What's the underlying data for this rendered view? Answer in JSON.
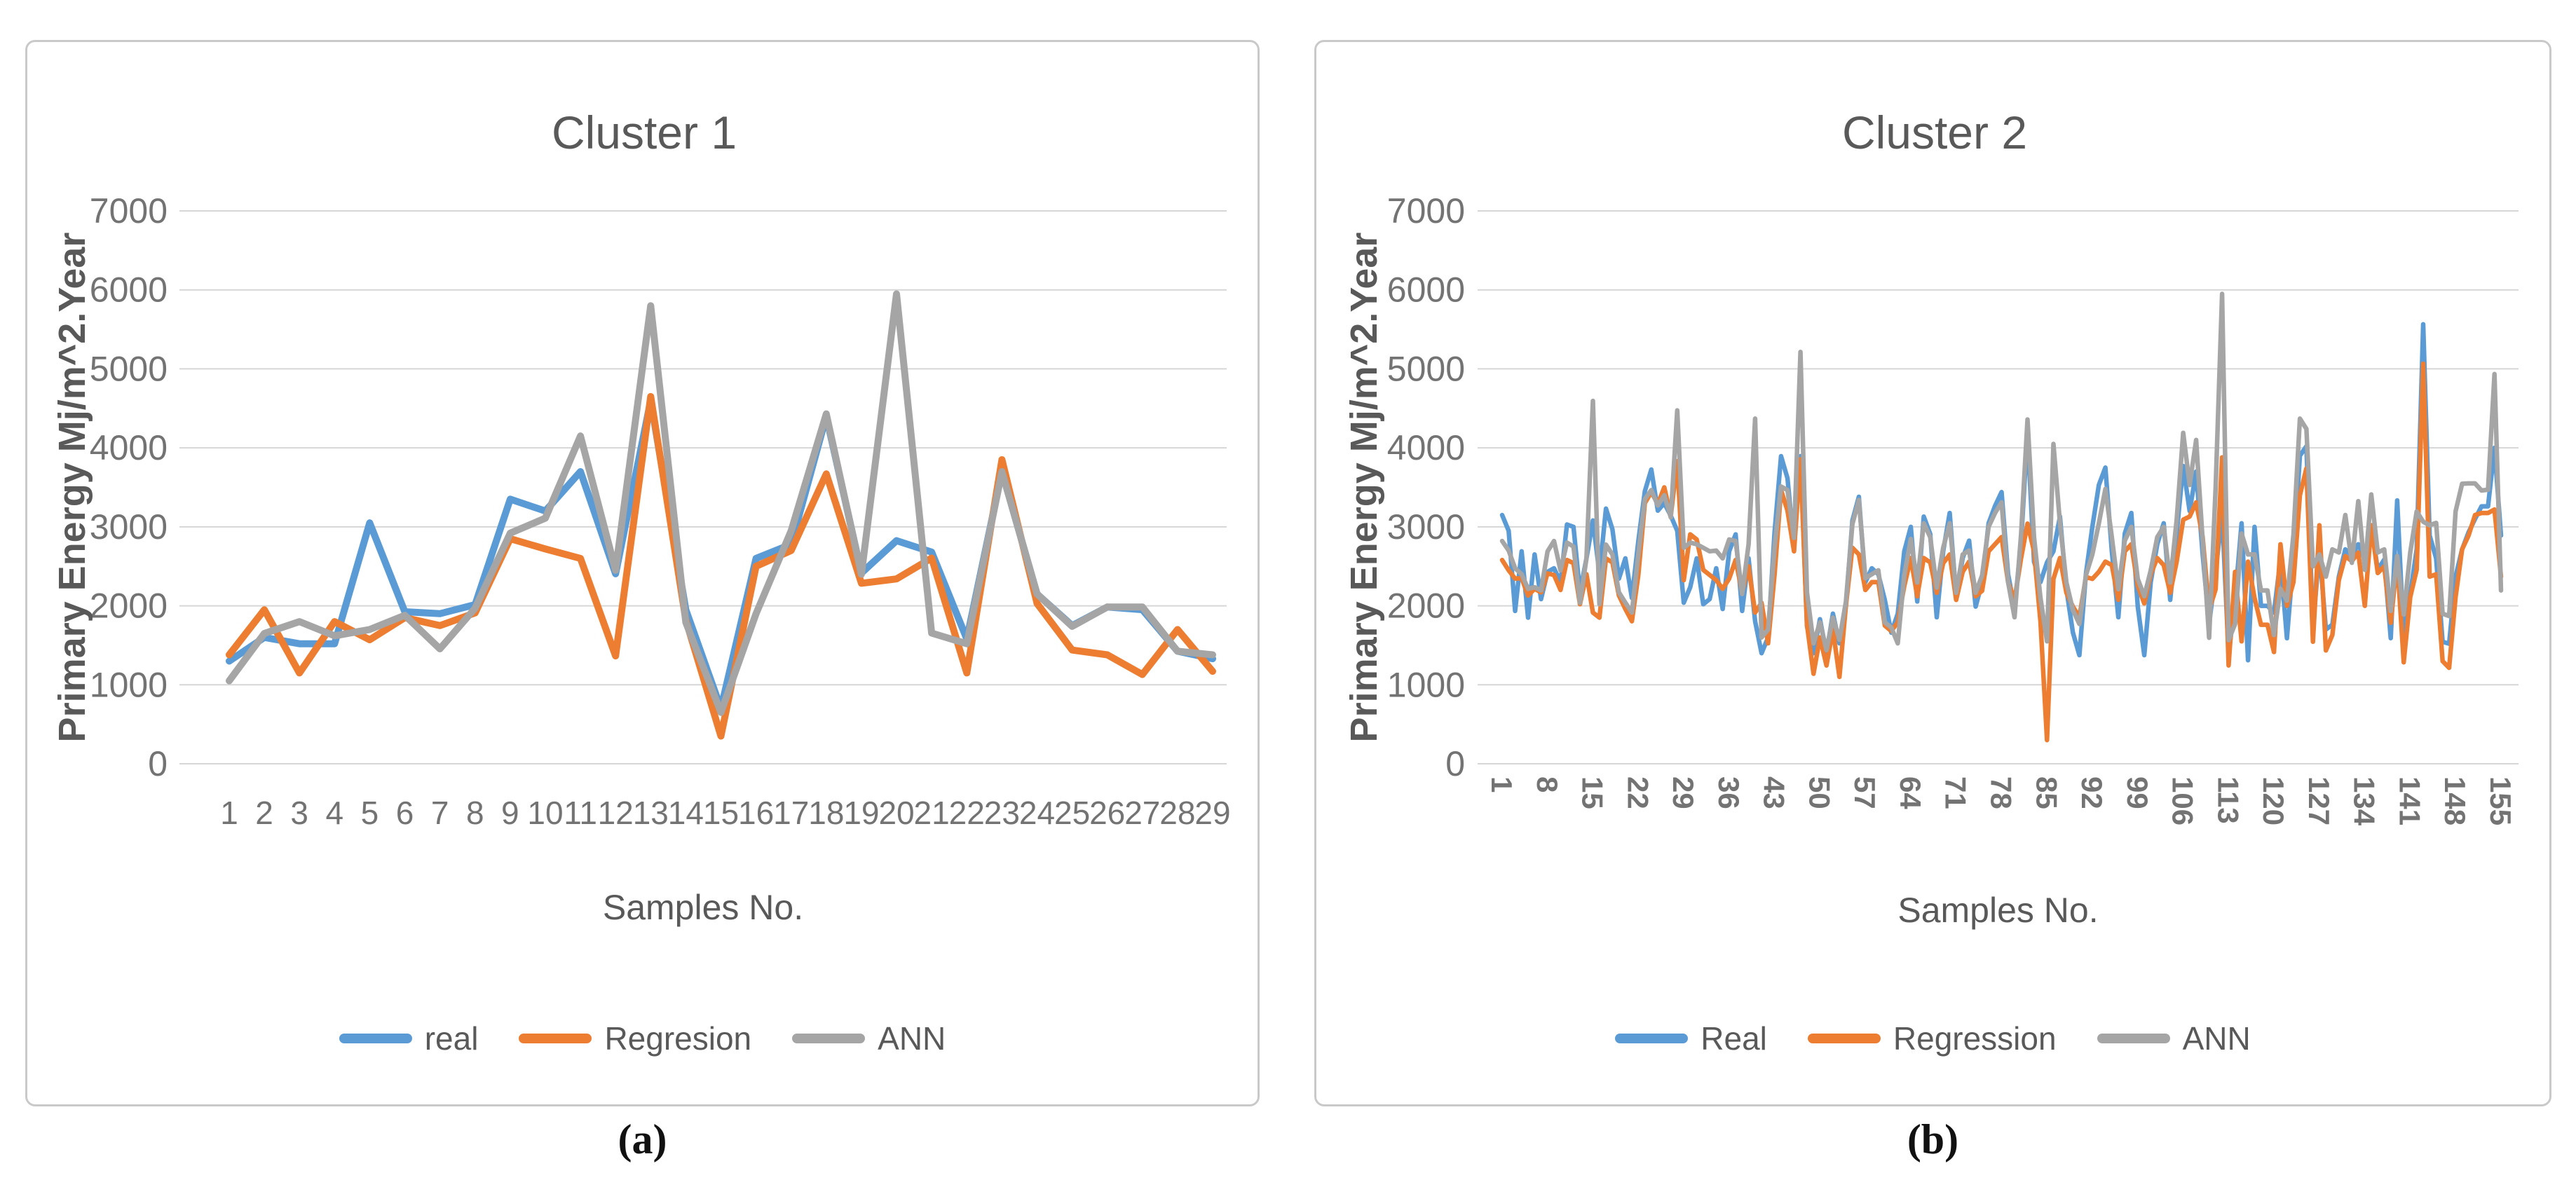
{
  "figure": {
    "panel_labels": {
      "a": "(a)",
      "b": "(b)"
    }
  },
  "colors": {
    "series_blue": "#5B9BD5",
    "series_orange": "#ED7D31",
    "series_gray": "#A5A5A5",
    "gridline": "#D6D6D6",
    "panel_border": "#C9C9C9",
    "title_text": "#595959",
    "tick_text": "#737373",
    "axis_title_text": "#595959"
  },
  "chart_data": [
    {
      "type": "line",
      "panel": "a",
      "panel_label": "(a)",
      "title": "Cluster 1",
      "xlabel": "Samples No.",
      "ylabel": "Primary Energy Mj/m^2.Year",
      "ylim": [
        0,
        7000
      ],
      "ytick_step": 1000,
      "y_tick_labels": [
        "0",
        "1000",
        "2000",
        "3000",
        "4000",
        "5000",
        "6000",
        "7000"
      ],
      "grid": true,
      "legend_position": "bottom",
      "x_tick_labels": [
        "1",
        "2",
        "3",
        "4",
        "5",
        "6",
        "7",
        "8",
        "9",
        "10",
        "11",
        "12",
        "13",
        "14",
        "15",
        "16",
        "17",
        "18",
        "19",
        "20",
        "21",
        "22",
        "23",
        "24",
        "25",
        "26",
        "27",
        "28",
        "29"
      ],
      "x_tick_rotation": 0,
      "series": [
        {
          "name": "real",
          "color": "#5B9BD5",
          "values": [
            1300,
            1600,
            1520,
            1520,
            3050,
            1925,
            1900,
            2015,
            3350,
            3200,
            3700,
            2405,
            4600,
            1950,
            700,
            2600,
            2780,
            4400,
            2415,
            2825,
            2680,
            1580,
            3700,
            2150,
            1750,
            1985,
            1950,
            1425,
            1330
          ]
        },
        {
          "name": "Regresion",
          "color": "#ED7D31",
          "values": [
            1380,
            1950,
            1150,
            1800,
            1570,
            1850,
            1750,
            1910,
            2850,
            2720,
            2600,
            1365,
            4650,
            1820,
            350,
            2500,
            2700,
            3670,
            2285,
            2340,
            2605,
            1150,
            3850,
            2030,
            1440,
            1380,
            1130,
            1700,
            1170
          ]
        },
        {
          "name": "ANN",
          "color": "#A5A5A5",
          "values": [
            1050,
            1650,
            1800,
            1620,
            1700,
            1880,
            1455,
            1970,
            2920,
            3110,
            4150,
            2450,
            5800,
            1790,
            650,
            1900,
            2950,
            4430,
            2400,
            5950,
            1655,
            1520,
            3700,
            2150,
            1740,
            1985,
            1985,
            1425,
            1380
          ]
        }
      ]
    },
    {
      "type": "line",
      "panel": "b",
      "panel_label": "(b)",
      "title": "Cluster 2",
      "xlabel": "Samples No.",
      "ylabel": "Primary Energy Mj/m^2.Year",
      "ylim": [
        0,
        7000
      ],
      "ytick_step": 1000,
      "y_tick_labels": [
        "0",
        "1000",
        "2000",
        "3000",
        "4000",
        "5000",
        "6000",
        "7000"
      ],
      "grid": true,
      "legend_position": "bottom",
      "x_tick_labels": [
        "1",
        "8",
        "15",
        "22",
        "29",
        "36",
        "43",
        "50",
        "57",
        "64",
        "71",
        "78",
        "85",
        "92",
        "99",
        "106",
        "113",
        "120",
        "127",
        "134",
        "141",
        "148",
        "155"
      ],
      "x_tick_rotation": 90,
      "series": [
        {
          "name": "Real",
          "color": "#5B9BD5",
          "values": [
            3150,
            2950,
            1935,
            2690,
            1850,
            2650,
            2085,
            2430,
            2475,
            2300,
            3030,
            3000,
            2170,
            2600,
            3080,
            2410,
            3230,
            2970,
            2345,
            2600,
            2100,
            2820,
            3450,
            3725,
            3205,
            3300,
            3140,
            2950,
            2040,
            2235,
            2600,
            2020,
            2085,
            2475,
            1960,
            2690,
            2905,
            1935,
            2600,
            1805,
            1400,
            1600,
            2925,
            3895,
            3615,
            2735,
            3895,
            1740,
            1400,
            1830,
            1400,
            1900,
            1525,
            2000,
            3080,
            3380,
            2300,
            2475,
            2400,
            2075,
            1660,
            1900,
            2690,
            3000,
            2055,
            3130,
            2910,
            1855,
            2690,
            3175,
            2120,
            2605,
            2825,
            1990,
            2295,
            3045,
            3265,
            3440,
            2400,
            1965,
            2800,
            4200,
            2560,
            2300,
            2550,
            2690,
            3130,
            2210,
            1660,
            1375,
            2400,
            3000,
            3530,
            3750,
            2690,
            1855,
            2915,
            3175,
            1990,
            1375,
            2300,
            2780,
            3045,
            2075,
            2915,
            3770,
            3200,
            3700,
            2650,
            1770,
            2430,
            3175,
            1375,
            2075,
            3045,
            1310,
            3000,
            2000,
            2000,
            1915,
            2585,
            1590,
            2600,
            3900,
            4020,
            1720,
            2715,
            1700,
            1760,
            2370,
            2715,
            2630,
            2780,
            2585,
            3020,
            2455,
            2585,
            1590,
            3335,
            1590,
            2150,
            2715,
            5565,
            2890,
            2600,
            1545,
            1520,
            2370,
            2715,
            2930,
            3100,
            3260,
            3260,
            4000,
            2890
          ]
        },
        {
          "name": "Regression",
          "color": "#ED7D31",
          "values": [
            2580,
            2450,
            2345,
            2350,
            2130,
            2215,
            2170,
            2410,
            2390,
            2200,
            2580,
            2540,
            2020,
            2400,
            1915,
            1850,
            2600,
            2550,
            2130,
            1960,
            1805,
            2390,
            3300,
            3440,
            3290,
            3500,
            3140,
            3830,
            2325,
            2905,
            2840,
            2455,
            2390,
            2325,
            2215,
            2345,
            2580,
            2170,
            2500,
            1915,
            2040,
            1525,
            2390,
            3465,
            3205,
            2690,
            3855,
            1760,
            1140,
            1600,
            1245,
            1700,
            1100,
            2000,
            2735,
            2650,
            2200,
            2300,
            2300,
            1750,
            1680,
            1790,
            2250,
            2605,
            2120,
            2605,
            2550,
            2165,
            2540,
            2650,
            2075,
            2430,
            2560,
            2120,
            2190,
            2690,
            2780,
            2870,
            2300,
            2075,
            2600,
            3040,
            2690,
            1800,
            300,
            2340,
            2605,
            2165,
            1990,
            1855,
            2365,
            2340,
            2430,
            2560,
            2515,
            2075,
            2690,
            2780,
            2255,
            2030,
            2400,
            2605,
            2515,
            2165,
            2560,
            3090,
            3130,
            3310,
            2870,
            1945,
            2210,
            3880,
            1245,
            2430,
            1550,
            2560,
            2100,
            1760,
            1760,
            1415,
            2780,
            2000,
            2300,
            3400,
            3740,
            1545,
            3020,
            1435,
            1630,
            2325,
            2630,
            2565,
            2675,
            2000,
            3020,
            2415,
            2500,
            1785,
            2585,
            1285,
            2110,
            2455,
            5065,
            2370,
            2400,
            1300,
            1215,
            2110,
            2715,
            2890,
            3150,
            3175,
            3175,
            3220,
            2370
          ]
        },
        {
          "name": "ANN",
          "color": "#A5A5A5",
          "values": [
            2820,
            2700,
            2475,
            2400,
            2215,
            2235,
            2195,
            2690,
            2820,
            2450,
            2800,
            2750,
            2040,
            2600,
            4595,
            2020,
            2775,
            2650,
            2170,
            2040,
            1915,
            2650,
            3350,
            3465,
            3270,
            3400,
            3120,
            4475,
            2735,
            2800,
            2780,
            2735,
            2690,
            2700,
            2600,
            2840,
            2820,
            2150,
            2780,
            4370,
            1600,
            1700,
            2735,
            3510,
            3465,
            2860,
            5215,
            2170,
            1525,
            1790,
            1440,
            1850,
            1570,
            2050,
            3035,
            3340,
            2350,
            2400,
            2450,
            1790,
            1725,
            1525,
            2385,
            2845,
            2295,
            3045,
            2870,
            2230,
            2735,
            3045,
            2165,
            2650,
            2700,
            2165,
            2385,
            3000,
            3175,
            3310,
            2300,
            1855,
            2900,
            4360,
            2870,
            2100,
            1550,
            4050,
            3045,
            2295,
            1945,
            1770,
            2385,
            2650,
            3045,
            3480,
            2870,
            2210,
            2825,
            3000,
            2340,
            2120,
            2450,
            2870,
            3000,
            2295,
            3090,
            4190,
            3530,
            4100,
            2825,
            1595,
            3500,
            5950,
            1565,
            1770,
            2915,
            2650,
            2650,
            2195,
            2195,
            1630,
            2215,
            2065,
            2900,
            4370,
            4240,
            2500,
            2650,
            2370,
            2715,
            2675,
            3150,
            2545,
            3325,
            2455,
            3410,
            2675,
            2715,
            1935,
            2630,
            1890,
            2675,
            3195,
            3065,
            3020,
            3050,
            1900,
            1870,
            3195,
            3545,
            3550,
            3550,
            3460,
            3470,
            4935,
            2195
          ]
        }
      ]
    }
  ]
}
